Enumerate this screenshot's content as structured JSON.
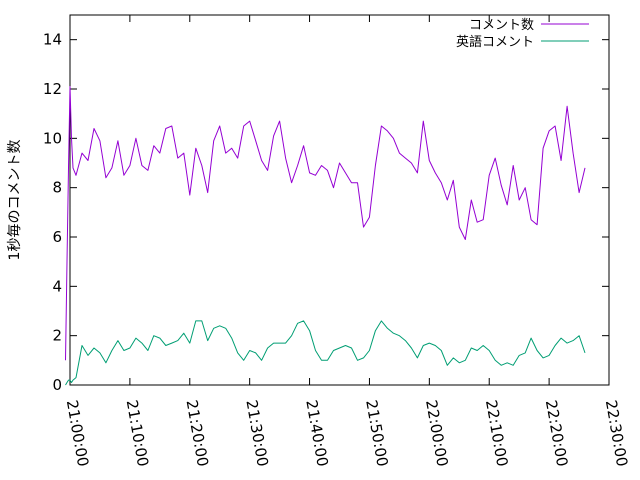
{
  "chart_data": {
    "type": "line",
    "xlabel": "",
    "ylabel": "1秒毎のコメント数",
    "ylim": [
      0,
      15
    ],
    "xlim": [
      "21:00:00",
      "22:30:00"
    ],
    "yticks": [
      "0",
      "2",
      "4",
      "6",
      "8",
      "10",
      "12",
      "14"
    ],
    "xticks": [
      "21:00:00",
      "21:10:00",
      "21:20:00",
      "21:30:00",
      "21:40:00",
      "21:50:00",
      "22:00:00",
      "22:10:00",
      "22:20:00",
      "22:30:00"
    ],
    "legend_position": "top-right",
    "grid": false,
    "series": [
      {
        "name": "コメント数",
        "color": "#9400d3",
        "x": [
          "20:59:15",
          "20:59:30",
          "20:59:45",
          "21:00:00",
          "21:00:15",
          "21:00:30",
          "21:01:00",
          "21:02:00",
          "21:03:00",
          "21:04:00",
          "21:05:00",
          "21:06:00",
          "21:07:00",
          "21:08:00",
          "21:09:00",
          "21:10:00",
          "21:11:00",
          "21:12:00",
          "21:13:00",
          "21:14:00",
          "21:15:00",
          "21:16:00",
          "21:17:00",
          "21:18:00",
          "21:19:00",
          "21:20:00",
          "21:21:00",
          "21:22:00",
          "21:23:00",
          "21:24:00",
          "21:25:00",
          "21:26:00",
          "21:27:00",
          "21:28:00",
          "21:29:00",
          "21:30:00",
          "21:31:00",
          "21:32:00",
          "21:33:00",
          "21:34:00",
          "21:35:00",
          "21:36:00",
          "21:37:00",
          "21:38:00",
          "21:39:00",
          "21:40:00",
          "21:41:00",
          "21:42:00",
          "21:43:00",
          "21:44:00",
          "21:45:00",
          "21:46:00",
          "21:47:00",
          "21:48:00",
          "21:49:00",
          "21:50:00",
          "21:51:00",
          "21:52:00",
          "21:53:00",
          "21:54:00",
          "21:55:00",
          "21:56:00",
          "21:57:00",
          "21:58:00",
          "21:59:00",
          "22:00:00",
          "22:01:00",
          "22:02:00",
          "22:03:00",
          "22:04:00",
          "22:05:00",
          "22:06:00",
          "22:07:00",
          "22:08:00",
          "22:09:00",
          "22:10:00",
          "22:11:00",
          "22:12:00",
          "22:13:00",
          "22:14:00",
          "22:15:00",
          "22:16:00",
          "22:17:00",
          "22:18:00",
          "22:19:00",
          "22:20:00",
          "22:21:00",
          "22:22:00",
          "22:23:00",
          "22:24:00",
          "22:25:00",
          "22:26:00"
        ],
        "values": [
          1.0,
          5.0,
          8.8,
          12.1,
          10.0,
          8.8,
          8.5,
          9.4,
          9.1,
          10.4,
          9.9,
          8.4,
          8.8,
          9.9,
          8.5,
          8.9,
          10.0,
          8.9,
          8.7,
          9.7,
          9.4,
          10.4,
          10.5,
          9.2,
          9.4,
          7.7,
          9.6,
          8.9,
          7.8,
          9.9,
          10.5,
          9.4,
          9.6,
          9.2,
          10.5,
          10.7,
          9.9,
          9.1,
          8.7,
          10.1,
          10.7,
          9.2,
          8.2,
          8.9,
          9.7,
          8.6,
          8.5,
          8.9,
          8.7,
          8.0,
          9.0,
          8.6,
          8.2,
          8.2,
          6.4,
          6.8,
          8.9,
          10.5,
          10.3,
          10.0,
          9.4,
          9.2,
          9.0,
          8.6,
          10.7,
          9.1,
          8.6,
          8.2,
          7.5,
          8.3,
          6.4,
          5.9,
          7.5,
          6.6,
          6.7,
          8.5,
          9.2,
          8.1,
          7.3,
          8.9,
          7.5,
          8.0,
          6.7,
          6.5,
          9.6,
          10.3,
          10.5,
          9.1,
          11.3,
          9.4,
          7.8,
          8.8
        ]
      },
      {
        "name": "英語コメント",
        "color": "#009e73",
        "x": [
          "20:59:15",
          "20:59:30",
          "20:59:45",
          "21:00:00",
          "21:00:15",
          "21:00:30",
          "21:01:00",
          "21:02:00",
          "21:03:00",
          "21:04:00",
          "21:05:00",
          "21:06:00",
          "21:07:00",
          "21:08:00",
          "21:09:00",
          "21:10:00",
          "21:11:00",
          "21:12:00",
          "21:13:00",
          "21:14:00",
          "21:15:00",
          "21:16:00",
          "21:17:00",
          "21:18:00",
          "21:19:00",
          "21:20:00",
          "21:21:00",
          "21:22:00",
          "21:23:00",
          "21:24:00",
          "21:25:00",
          "21:26:00",
          "21:27:00",
          "21:28:00",
          "21:29:00",
          "21:30:00",
          "21:31:00",
          "21:32:00",
          "21:33:00",
          "21:34:00",
          "21:35:00",
          "21:36:00",
          "21:37:00",
          "21:38:00",
          "21:39:00",
          "21:40:00",
          "21:41:00",
          "21:42:00",
          "21:43:00",
          "21:44:00",
          "21:45:00",
          "21:46:00",
          "21:47:00",
          "21:48:00",
          "21:49:00",
          "21:50:00",
          "21:51:00",
          "21:52:00",
          "21:53:00",
          "21:54:00",
          "21:55:00",
          "21:56:00",
          "21:57:00",
          "21:58:00",
          "21:59:00",
          "22:00:00",
          "22:01:00",
          "22:02:00",
          "22:03:00",
          "22:04:00",
          "22:05:00",
          "22:06:00",
          "22:07:00",
          "22:08:00",
          "22:09:00",
          "22:10:00",
          "22:11:00",
          "22:12:00",
          "22:13:00",
          "22:14:00",
          "22:15:00",
          "22:16:00",
          "22:17:00",
          "22:18:00",
          "22:19:00",
          "22:20:00",
          "22:21:00",
          "22:22:00",
          "22:23:00",
          "22:24:00",
          "22:25:00",
          "22:26:00"
        ],
        "values": [
          0.0,
          0.1,
          0.2,
          0.2,
          0.1,
          0.2,
          0.3,
          1.6,
          1.2,
          1.5,
          1.3,
          0.9,
          1.4,
          1.8,
          1.4,
          1.5,
          1.9,
          1.7,
          1.4,
          2.0,
          1.9,
          1.6,
          1.7,
          1.8,
          2.1,
          1.7,
          2.6,
          2.6,
          1.8,
          2.3,
          2.4,
          2.3,
          1.9,
          1.3,
          1.0,
          1.4,
          1.3,
          1.0,
          1.5,
          1.7,
          1.7,
          1.7,
          2.0,
          2.5,
          2.6,
          2.2,
          1.4,
          1.0,
          1.0,
          1.4,
          1.5,
          1.6,
          1.5,
          1.0,
          1.1,
          1.4,
          2.2,
          2.6,
          2.3,
          2.1,
          2.0,
          1.8,
          1.5,
          1.1,
          1.6,
          1.7,
          1.6,
          1.4,
          0.8,
          1.1,
          0.9,
          1.0,
          1.5,
          1.4,
          1.6,
          1.4,
          1.0,
          0.8,
          0.9,
          0.8,
          1.2,
          1.3,
          1.9,
          1.4,
          1.1,
          1.2,
          1.6,
          1.9,
          1.7,
          1.8,
          2.0,
          1.3
        ]
      }
    ]
  }
}
